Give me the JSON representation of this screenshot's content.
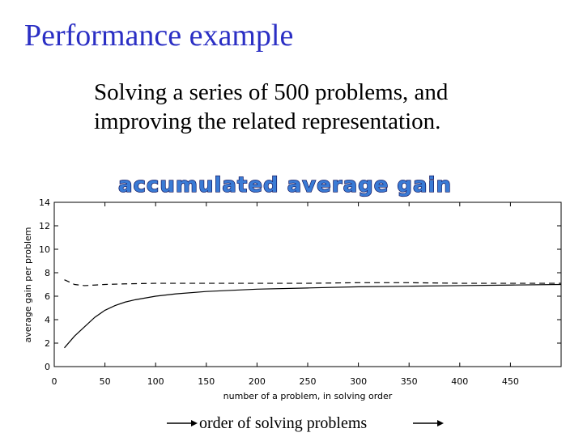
{
  "slide": {
    "title": "Performance example",
    "subtitle_lines": [
      "Solving a series of 500 problems, and",
      "improving the related representation."
    ],
    "footer_text": "order of solving problems"
  },
  "chart_data": {
    "type": "line",
    "title": "accumulated average gain",
    "xlabel": "number of a problem, in solving order",
    "ylabel": "average gain per problem",
    "xlim": [
      0,
      500
    ],
    "ylim": [
      0,
      14
    ],
    "xticks": [
      0,
      50,
      100,
      150,
      200,
      250,
      300,
      350,
      400,
      450
    ],
    "yticks": [
      0,
      2,
      4,
      6,
      8,
      10,
      12,
      14
    ],
    "grid": false,
    "series": [
      {
        "style": "dashed",
        "color": "#000000",
        "x": [
          10,
          15,
          20,
          30,
          40,
          50,
          70,
          100,
          150,
          200,
          250,
          300,
          350,
          400,
          450,
          500
        ],
        "y": [
          7.4,
          7.2,
          7.0,
          6.9,
          6.95,
          7.0,
          7.05,
          7.1,
          7.1,
          7.1,
          7.1,
          7.15,
          7.15,
          7.1,
          7.1,
          7.1
        ]
      },
      {
        "style": "solid",
        "color": "#000000",
        "x": [
          10,
          20,
          30,
          40,
          50,
          60,
          70,
          80,
          100,
          120,
          150,
          200,
          250,
          300,
          350,
          400,
          450,
          500
        ],
        "y": [
          1.6,
          2.6,
          3.4,
          4.2,
          4.8,
          5.2,
          5.5,
          5.7,
          6.0,
          6.2,
          6.4,
          6.6,
          6.7,
          6.8,
          6.85,
          6.9,
          6.95,
          7.0
        ]
      }
    ]
  }
}
